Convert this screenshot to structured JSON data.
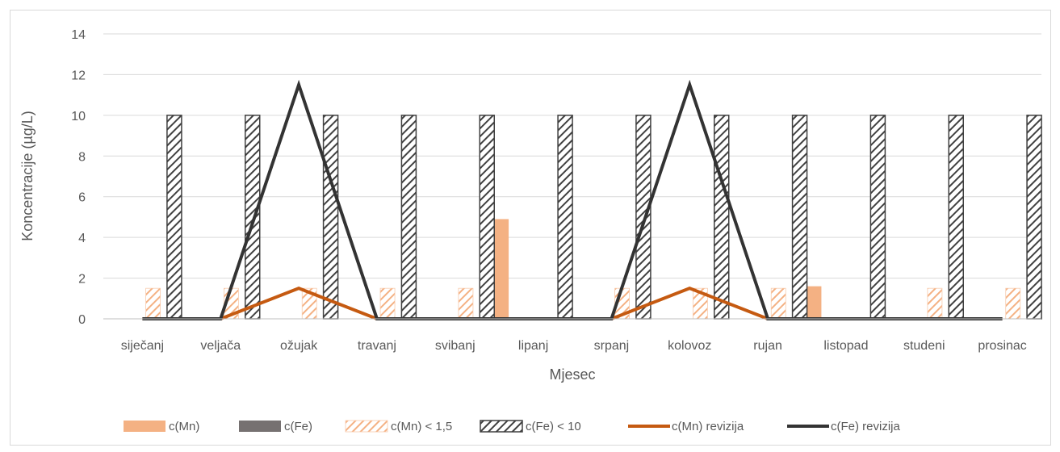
{
  "chart_data": {
    "type": "bar",
    "xlabel": "Mjesec",
    "ylabel": "Koncentracije (µg/L)",
    "ylim": [
      0,
      14
    ],
    "yticks": [
      0,
      2,
      4,
      6,
      8,
      10,
      12,
      14
    ],
    "grid": true,
    "legend_position": "bottom",
    "categories": [
      "siječanj",
      "veljača",
      "ožujak",
      "travanj",
      "svibanj",
      "lipanj",
      "srpanj",
      "kolovoz",
      "rujan",
      "listopad",
      "studeni",
      "prosinac"
    ],
    "series": [
      {
        "name": "c(Mn)",
        "kind": "bar",
        "style": "solid",
        "color": "#f4b183",
        "values": [
          0,
          0,
          0,
          0,
          0,
          4.9,
          0,
          0,
          0,
          1.6,
          0,
          0
        ]
      },
      {
        "name": "c(Fe)",
        "kind": "bar",
        "style": "solid",
        "color": "#767171",
        "values": [
          0,
          0,
          0,
          0,
          0,
          0,
          0,
          0,
          0,
          0,
          0,
          0
        ]
      },
      {
        "name": "c(Mn) < 1,5",
        "kind": "bar",
        "style": "hatch",
        "color": "#f4b183",
        "values": [
          1.5,
          1.5,
          1.5,
          1.5,
          1.5,
          0,
          1.5,
          1.5,
          1.5,
          0,
          1.5,
          1.5
        ]
      },
      {
        "name": "c(Fe) < 10",
        "kind": "bar",
        "style": "hatch",
        "color": "#404040",
        "values": [
          10,
          10,
          10,
          10,
          10,
          10,
          10,
          10,
          10,
          10,
          10,
          10
        ]
      },
      {
        "name": "c(Mn) revizija",
        "kind": "line",
        "color": "#c55a11",
        "values": [
          0,
          0,
          1.5,
          0,
          0,
          0,
          0,
          1.5,
          0,
          0,
          0,
          0
        ]
      },
      {
        "name": "c(Fe) revizija",
        "kind": "line",
        "color": "#333333",
        "values": [
          0,
          0,
          11.5,
          0,
          0,
          0,
          0,
          11.5,
          0,
          0,
          0,
          0
        ]
      }
    ]
  }
}
